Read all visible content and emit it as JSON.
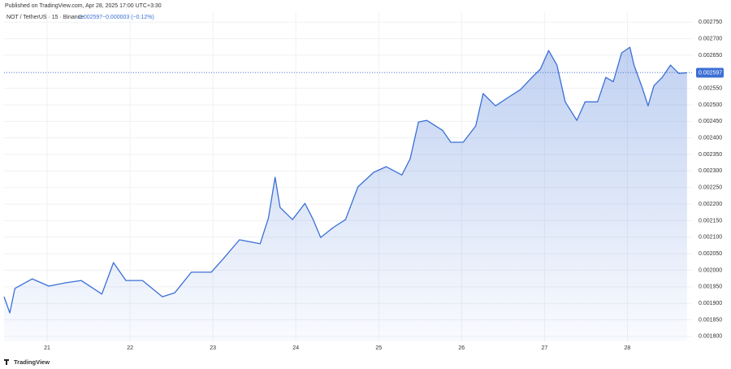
{
  "header": "Published on TradingView.com, Apr 28, 2025 17:00 UTC+3:30",
  "footer": "TradingView",
  "chart_data": {
    "type": "area",
    "symbol": "NOT / TetherUS · 15 · Binance",
    "last": "0.002597",
    "change": "−0.000003 (−0.12%)",
    "color": "#3b6fd6",
    "grid": true,
    "x": [
      20.48,
      20.55,
      20.61,
      20.82,
      21.02,
      21.22,
      21.41,
      21.66,
      21.8,
      21.95,
      22.15,
      22.39,
      22.54,
      22.74,
      22.98,
      23.13,
      23.32,
      23.57,
      23.67,
      23.75,
      23.81,
      23.96,
      24.11,
      24.21,
      24.3,
      24.45,
      24.6,
      24.75,
      24.94,
      25.09,
      25.28,
      25.38,
      25.48,
      25.58,
      25.77,
      25.87,
      26.02,
      26.17,
      26.26,
      26.41,
      26.56,
      26.71,
      26.85,
      26.95,
      27.05,
      27.15,
      27.25,
      27.34,
      27.39,
      27.49,
      27.64,
      27.74,
      27.83,
      27.93,
      28.03,
      28.08,
      28.18,
      28.25,
      28.32,
      28.42,
      28.52,
      28.62,
      28.72
    ],
    "values": [
      0.00192,
      0.001871,
      0.001945,
      0.001974,
      0.001952,
      0.001962,
      0.001969,
      0.001928,
      0.002023,
      0.001969,
      0.001969,
      0.00192,
      0.001932,
      0.001994,
      0.001994,
      0.002036,
      0.002092,
      0.00208,
      0.002158,
      0.002281,
      0.00219,
      0.002153,
      0.002202,
      0.002153,
      0.002099,
      0.002129,
      0.002153,
      0.002252,
      0.002296,
      0.002313,
      0.002288,
      0.002337,
      0.002448,
      0.002453,
      0.002423,
      0.002387,
      0.002387,
      0.002436,
      0.002534,
      0.002497,
      0.002522,
      0.002546,
      0.002583,
      0.002608,
      0.002664,
      0.00262,
      0.002509,
      0.002473,
      0.002453,
      0.002509,
      0.002509,
      0.002583,
      0.00257,
      0.002657,
      0.002674,
      0.00262,
      0.002551,
      0.002497,
      0.002558,
      0.002583,
      0.00262,
      0.002595,
      0.002597
    ],
    "xlim": [
      20.48,
      28.78
    ],
    "xticks": [
      21,
      22,
      23,
      24,
      25,
      26,
      27,
      28
    ],
    "ylim": [
      0.001785,
      0.00278
    ],
    "yticks": [
      {
        "value": 0.0018,
        "label": "0.001800"
      },
      {
        "value": 0.00185,
        "label": "0.001850"
      },
      {
        "value": 0.0019,
        "label": "0.001900"
      },
      {
        "value": 0.00195,
        "label": "0.001950"
      },
      {
        "value": 0.002,
        "label": "0.002000"
      },
      {
        "value": 0.00205,
        "label": "0.002050"
      },
      {
        "value": 0.0021,
        "label": "0.002100"
      },
      {
        "value": 0.00215,
        "label": "0.002150"
      },
      {
        "value": 0.0022,
        "label": "0.002200"
      },
      {
        "value": 0.00225,
        "label": "0.002250"
      },
      {
        "value": 0.0023,
        "label": "0.002300"
      },
      {
        "value": 0.00235,
        "label": "0.002350"
      },
      {
        "value": 0.0024,
        "label": "0.002400"
      },
      {
        "value": 0.00245,
        "label": "0.002450"
      },
      {
        "value": 0.0025,
        "label": "0.002500"
      },
      {
        "value": 0.00255,
        "label": "0.002550"
      },
      {
        "value": 0.0026,
        "label": "0.002600"
      },
      {
        "value": 0.00265,
        "label": "0.002650"
      },
      {
        "value": 0.0027,
        "label": "0.002700"
      },
      {
        "value": 0.00275,
        "label": "0.002750"
      }
    ],
    "price_line": {
      "value": 0.002597,
      "label": "0.002597"
    }
  }
}
